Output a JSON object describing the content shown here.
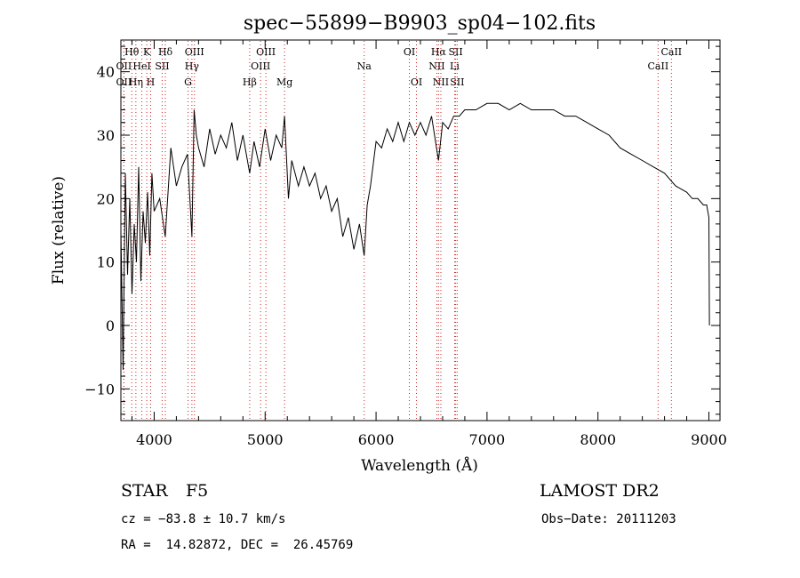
{
  "chart_data": {
    "type": "line",
    "title": "spec−55899−B9903_sp04−102.fits",
    "xlabel": "Wavelength (Å)",
    "ylabel": "Flux (relative)",
    "xlim": [
      3700,
      9100
    ],
    "ylim": [
      -15,
      45
    ],
    "xticks": [
      4000,
      5000,
      6000,
      7000,
      8000,
      9000
    ],
    "xtick_labels": [
      "4000",
      "5000",
      "6000",
      "7000",
      "8000",
      "9000"
    ],
    "yticks": [
      -10,
      0,
      10,
      20,
      30,
      40
    ],
    "ytick_labels": [
      "−10",
      "0",
      "10",
      "20",
      "30",
      "40"
    ],
    "grid": false,
    "series": [
      {
        "color": "#000000",
        "x": [
          3700,
          3720,
          3740,
          3760,
          3780,
          3800,
          3820,
          3840,
          3860,
          3880,
          3900,
          3920,
          3940,
          3960,
          3980,
          4000,
          4050,
          4100,
          4150,
          4200,
          4250,
          4300,
          4340,
          4360,
          4380,
          4400,
          4450,
          4500,
          4550,
          4600,
          4650,
          4700,
          4750,
          4800,
          4861,
          4900,
          4950,
          5000,
          5050,
          5100,
          5150,
          5175,
          5210,
          5240,
          5300,
          5350,
          5400,
          5450,
          5500,
          5550,
          5600,
          5650,
          5700,
          5750,
          5800,
          5850,
          5893,
          5920,
          5950,
          6000,
          6050,
          6100,
          6150,
          6200,
          6250,
          6300,
          6350,
          6400,
          6450,
          6500,
          6563,
          6600,
          6650,
          6700,
          6750,
          6800,
          6900,
          7000,
          7100,
          7200,
          7300,
          7400,
          7500,
          7600,
          7700,
          7800,
          7900,
          8000,
          8100,
          8200,
          8300,
          8400,
          8500,
          8600,
          8700,
          8800,
          8850,
          8900,
          8950,
          8980,
          9000,
          9005
        ],
        "y": [
          15,
          -7,
          24,
          8,
          20,
          5,
          16,
          10,
          25,
          7,
          18,
          13,
          21,
          11,
          24,
          18,
          20,
          14,
          28,
          22,
          25,
          27,
          14,
          34,
          30,
          28,
          25,
          31,
          27,
          30,
          28,
          32,
          26,
          30,
          24,
          29,
          25,
          31,
          26,
          30,
          28,
          33,
          20,
          26,
          22,
          25,
          22,
          24,
          20,
          22,
          18,
          20,
          14,
          17,
          12,
          16,
          11,
          19,
          22,
          29,
          28,
          31,
          29,
          32,
          29,
          32,
          30,
          32,
          30,
          33,
          26,
          32,
          31,
          33,
          33,
          34,
          34,
          35,
          35,
          34,
          35,
          34,
          34,
          34,
          33,
          33,
          32,
          31,
          30,
          28,
          27,
          26,
          25,
          24,
          22,
          21,
          20,
          20,
          19,
          19,
          17,
          0
        ]
      }
    ],
    "lines": [
      {
        "label": "Hθ",
        "x": 3798,
        "row": 1
      },
      {
        "label": "K",
        "x": 3933,
        "row": 1
      },
      {
        "label": "Hδ",
        "x": 4101,
        "row": 1
      },
      {
        "label": "OIII",
        "x": 4363,
        "row": 1
      },
      {
        "label": "OIII",
        "x": 5007,
        "row": 1
      },
      {
        "label": "OI",
        "x": 6300,
        "row": 1
      },
      {
        "label": "Hα",
        "x": 6563,
        "row": 1
      },
      {
        "label": "SII",
        "x": 6717,
        "row": 1
      },
      {
        "label": "CaII",
        "x": 8662,
        "row": 1
      },
      {
        "label": "OII",
        "x": 3727,
        "row": 2
      },
      {
        "label": "HeI",
        "x": 3889,
        "row": 2
      },
      {
        "label": "SII",
        "x": 4072,
        "row": 2
      },
      {
        "label": "Hγ",
        "x": 4340,
        "row": 2
      },
      {
        "label": "OIII",
        "x": 4959,
        "row": 2
      },
      {
        "label": "NII",
        "x": 6548,
        "row": 2
      },
      {
        "label": "Li",
        "x": 6708,
        "row": 2
      },
      {
        "label": "CaII",
        "x": 8542,
        "row": 2
      },
      {
        "label": "Na",
        "x": 5893,
        "row": 2
      },
      {
        "label": "OII",
        "x": 3727,
        "row": 3
      },
      {
        "label": "Hη",
        "x": 3835,
        "row": 3
      },
      {
        "label": "H",
        "x": 3968,
        "row": 3
      },
      {
        "label": "G",
        "x": 4305,
        "row": 3
      },
      {
        "label": "Hβ",
        "x": 4861,
        "row": 3
      },
      {
        "label": "Mg",
        "x": 5175,
        "row": 3
      },
      {
        "label": "OI",
        "x": 6364,
        "row": 3
      },
      {
        "label": "NII",
        "x": 6584,
        "row": 3
      },
      {
        "label": "SII",
        "x": 6731,
        "row": 3
      }
    ]
  },
  "info": {
    "class": "STAR",
    "subclass": "F5",
    "survey": "LAMOST DR2",
    "cz": "cz = −83.8 ± 10.7 km/s",
    "obs_date": "Obs−Date: 20111203",
    "coords": "RA =  14.82872, DEC =  26.45769"
  }
}
